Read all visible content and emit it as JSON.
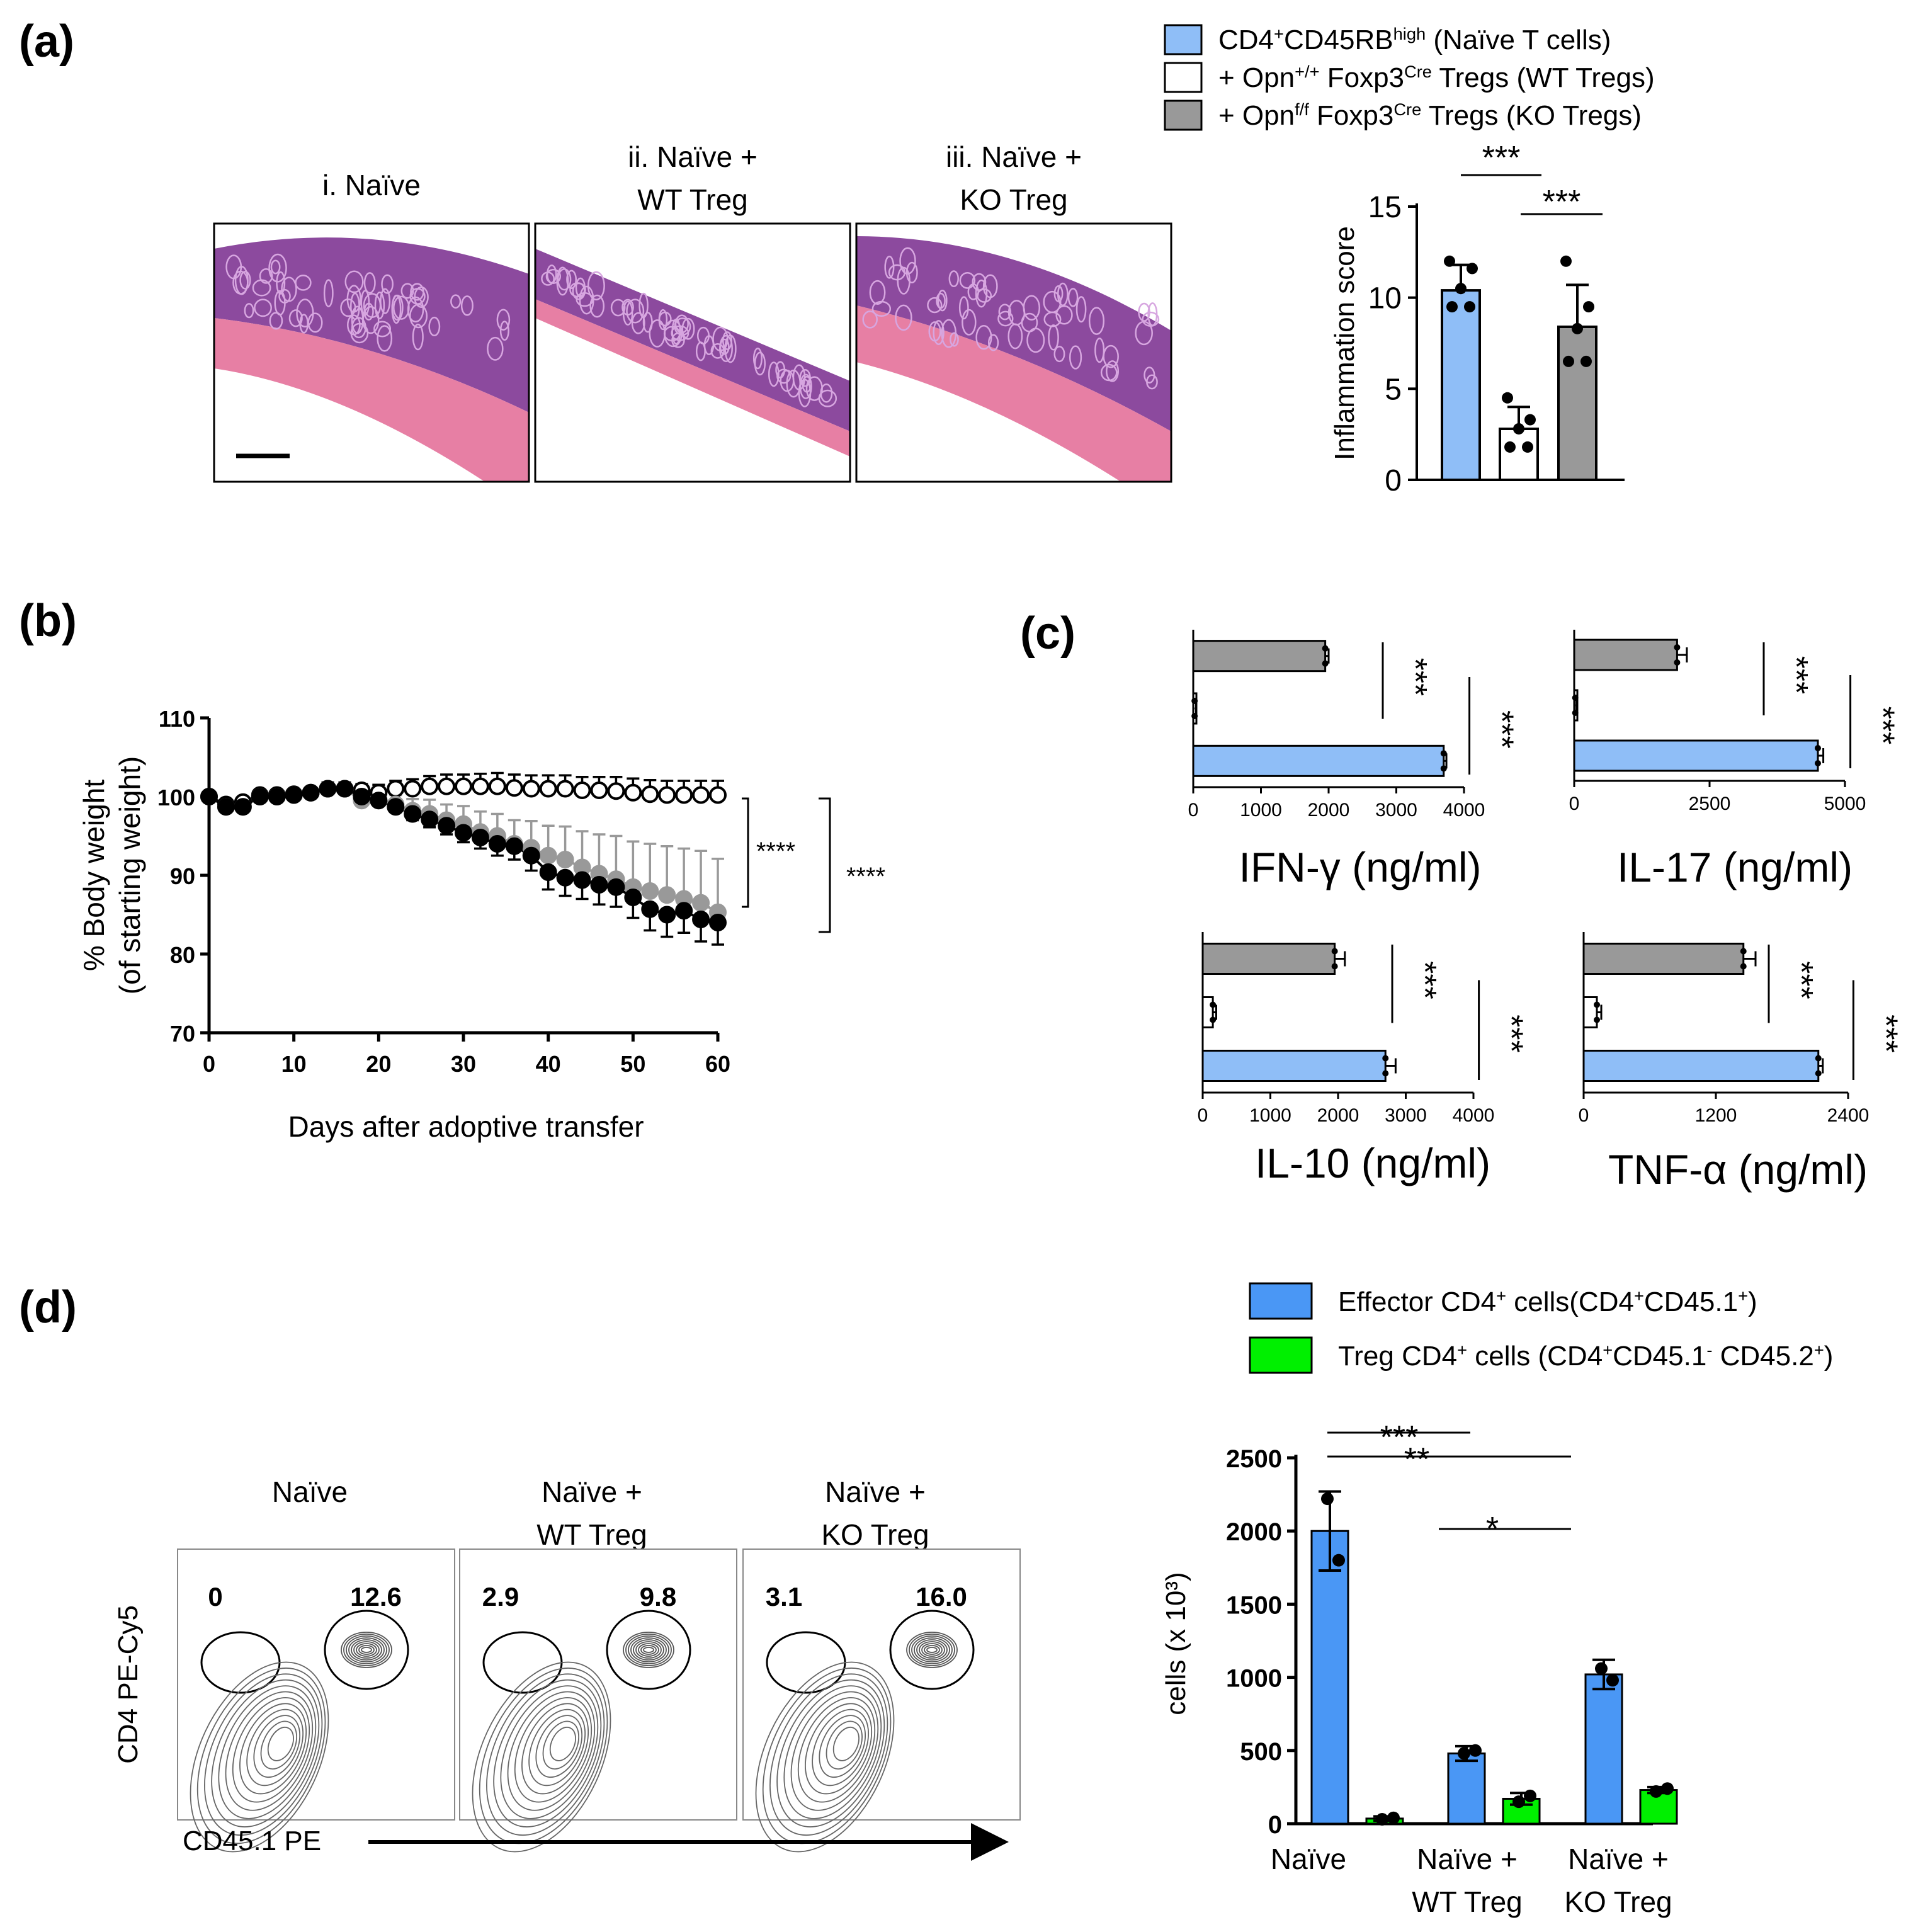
{
  "panels": {
    "a": {
      "label": "(a)",
      "legend": [
        {
          "pre": "CD4",
          "sup1": "+",
          "mid": "CD45RB",
          "sup2": "high",
          "post": " (Naïve T cells)",
          "color": "#8fbef7"
        },
        {
          "pre": "+ Opn",
          "sup1": "+/+",
          "mid": " Foxp3",
          "sup2": "Cre",
          "post": " Tregs (WT Tregs)",
          "color": "#ffffff"
        },
        {
          "pre": "+ Opn",
          "sup1": "f/f",
          "mid": " Foxp3",
          "sup2": "Cre",
          "post": " Tregs (KO Tregs)",
          "color": "#999999"
        }
      ],
      "histology": {
        "titles": [
          [
            "i. Naïve"
          ],
          [
            "ii. Naïve +",
            "WT Treg"
          ],
          [
            "iii. Naïve +",
            "KO Treg"
          ]
        ]
      },
      "sig": [
        "***",
        "***"
      ],
      "chart_data": {
        "type": "bar",
        "categories": [
          "Naïve",
          "Naïve + WT Treg",
          "Naïve + KO Treg"
        ],
        "values": [
          10.4,
          2.8,
          8.4
        ],
        "errors": [
          1.4,
          1.2,
          2.3
        ],
        "points": [
          [
            12,
            11.6,
            10.5,
            9.5,
            9.5
          ],
          [
            4.5,
            3.3,
            2.8,
            1.8,
            1.8
          ],
          [
            12,
            9.5,
            8.3,
            6.5,
            6.5
          ]
        ],
        "colors": [
          "#8fbef7",
          "#ffffff",
          "#999999"
        ],
        "ylabel": "Inflammation score",
        "ylim": [
          0,
          15
        ],
        "yticks": [
          0,
          5,
          10,
          15
        ]
      }
    },
    "b": {
      "label": "(b)",
      "sig": [
        "****",
        "****"
      ],
      "chart_data": {
        "type": "line",
        "xlabel": "Days after adoptive transfer",
        "ylabel": [
          "% Body weight",
          "(of starting weight)"
        ],
        "xlim": [
          0,
          60
        ],
        "ylim": [
          70,
          110
        ],
        "xticks": [
          0,
          10,
          20,
          30,
          40,
          50,
          60
        ],
        "yticks": [
          70,
          80,
          90,
          100,
          110
        ],
        "x": [
          0,
          2,
          4,
          6,
          8,
          10,
          12,
          14,
          16,
          18,
          20,
          22,
          24,
          26,
          28,
          30,
          32,
          34,
          36,
          38,
          40,
          42,
          44,
          46,
          48,
          50,
          52,
          54,
          56,
          58,
          60
        ],
        "series": [
          {
            "name": "WT Tregs",
            "style": "open",
            "values": [
              100,
              99,
              99.3,
              100.2,
              100.2,
              100.3,
              100.5,
              101,
              101,
              100.8,
              100.5,
              101,
              101,
              101.3,
              101.3,
              101.3,
              101.3,
              101.3,
              101.1,
              101,
              101,
              101,
              100.8,
              100.8,
              100.7,
              100.5,
              100.3,
              100.2,
              100.2,
              100.2,
              100.2
            ],
            "errors": [
              0,
              0.5,
              0.5,
              0.5,
              0.5,
              0.5,
              0.5,
              0.8,
              0.8,
              0.8,
              1,
              1,
              1.2,
              1.3,
              1.5,
              1.5,
              1.6,
              1.7,
              1.7,
              1.7,
              1.7,
              1.7,
              1.7,
              1.7,
              1.8,
              1.8,
              1.8,
              1.8,
              1.8,
              1.8,
              1.8
            ]
          },
          {
            "name": "KO Tregs",
            "style": "gray",
            "values": [
              100,
              98.7,
              98.7,
              100,
              100,
              100.2,
              100.5,
              101,
              101,
              99.5,
              99.5,
              99,
              98.2,
              97.8,
              97,
              96.5,
              95.5,
              95,
              94,
              93.5,
              92.5,
              92,
              91,
              90.2,
              89.5,
              88.5,
              88,
              87.5,
              87,
              86.5,
              85.3
            ],
            "errors": [
              0,
              0.5,
              0.5,
              0.5,
              0.5,
              0.5,
              0.5,
              0.5,
              0.5,
              0.8,
              1,
              1.2,
              1.5,
              1.8,
              2,
              2.3,
              2.6,
              2.8,
              3,
              3.4,
              3.8,
              4.2,
              4.6,
              5,
              5.5,
              5.8,
              6,
              6.2,
              6.4,
              6.6,
              6.8
            ]
          },
          {
            "name": "Naïve",
            "style": "black",
            "values": [
              100,
              98.7,
              98.7,
              100,
              100,
              100.2,
              100.5,
              101,
              101,
              100,
              99.5,
              98.7,
              97.8,
              97.1,
              96.3,
              95.4,
              94.8,
              94,
              93.7,
              92.5,
              90.4,
              89.7,
              89.4,
              88.8,
              88.5,
              87.2,
              85.7,
              85,
              85.5,
              84.4,
              84
            ],
            "errors": [
              0,
              0.5,
              0.5,
              0.5,
              0.5,
              0.5,
              0.5,
              0.5,
              0.5,
              0.5,
              0.5,
              0.6,
              0.8,
              1,
              1.1,
              1.2,
              1.4,
              1.5,
              1.7,
              1.9,
              2.2,
              2.3,
              2.4,
              2.5,
              2.5,
              2.6,
              2.7,
              2.8,
              2.8,
              2.8,
              2.8
            ]
          }
        ]
      }
    },
    "c": {
      "label": "(c)",
      "sig": "***",
      "charts": [
        {
          "title": "IFN-γ (ng/ml)",
          "xlim": [
            0,
            4000
          ],
          "xticks": [
            0,
            1000,
            2000,
            3000,
            4000
          ],
          "values": [
            1950,
            20,
            3700
          ],
          "errors": [
            50,
            20,
            40
          ],
          "colors": [
            "#999999",
            "#ffffff",
            "#8fbef7"
          ]
        },
        {
          "title": "IL-17 (ng/ml)",
          "xlim": [
            0,
            5000
          ],
          "xticks": [
            0,
            2500,
            5000
          ],
          "values": [
            1900,
            20,
            4500
          ],
          "errors": [
            180,
            20,
            100
          ],
          "colors": [
            "#999999",
            "#ffffff",
            "#8fbef7"
          ]
        },
        {
          "title": "IL-10 (ng/ml)",
          "xlim": [
            0,
            4000
          ],
          "xticks": [
            0,
            1000,
            2000,
            3000,
            4000
          ],
          "values": [
            1950,
            150,
            2700
          ],
          "errors": [
            150,
            50,
            150
          ],
          "colors": [
            "#999999",
            "#ffffff",
            "#8fbef7"
          ]
        },
        {
          "title": "TNF-α (ng/ml)",
          "xlim": [
            0,
            2400
          ],
          "xticks": [
            0,
            1200,
            2400
          ],
          "values": [
            1450,
            120,
            2130
          ],
          "errors": [
            110,
            40,
            40
          ],
          "colors": [
            "#999999",
            "#ffffff",
            "#8fbef7"
          ]
        }
      ]
    },
    "d": {
      "label": "(d)",
      "legend": [
        {
          "text": "Effector CD4",
          "sup": "+",
          "rest": " cells(CD4",
          "sup2": "+",
          "rest2": "CD45.1",
          "sup3": "+",
          "rest3": ")",
          "color": "#4a97f5"
        },
        {
          "text": "Treg CD4",
          "sup": "+",
          "rest": " cells  (CD4",
          "sup2": "+",
          "rest2": "CD45.1",
          "sup3": "-",
          "rest3": " CD45.2",
          "sup4": "+",
          "rest4": ")",
          "color": "#00f000"
        }
      ],
      "flow": {
        "titles": [
          [
            "Naïve"
          ],
          [
            "Naïve +",
            "WT Treg"
          ],
          [
            "Naïve +",
            "KO Treg"
          ]
        ],
        "gate_values": [
          [
            "0",
            "12.6"
          ],
          [
            "2.9",
            "9.8"
          ],
          [
            "3.1",
            "16.0"
          ]
        ],
        "ylabel": "CD4 PE-Cy5",
        "xlabel": "CD45.1 PE"
      },
      "sig": [
        "***",
        "**",
        "*"
      ],
      "chart_data": {
        "type": "bar",
        "categories": [
          [
            "Naïve"
          ],
          [
            "Naïve +",
            "WT Treg"
          ],
          [
            "Naïve +",
            "KO Treg"
          ]
        ],
        "series": [
          {
            "name": "Effector CD4+ cells",
            "color": "#4a97f5",
            "values": [
              2000,
              480,
              1020
            ],
            "errors": [
              270,
              50,
              100
            ],
            "points": [
              [
                2220,
                1800
              ],
              [
                480,
                500
              ],
              [
                1060,
                980
              ]
            ]
          },
          {
            "name": "Treg CD4+ cells",
            "color": "#00f000",
            "values": [
              35,
              170,
              230
            ],
            "errors": [
              15,
              40,
              20
            ],
            "points": [
              [
                30,
                40
              ],
              [
                150,
                190
              ],
              [
                220,
                240
              ]
            ]
          }
        ],
        "ylabel": "cells (x 10³)",
        "ylim": [
          0,
          2500
        ],
        "yticks": [
          0,
          500,
          1000,
          1500,
          2000,
          2500
        ]
      }
    }
  }
}
